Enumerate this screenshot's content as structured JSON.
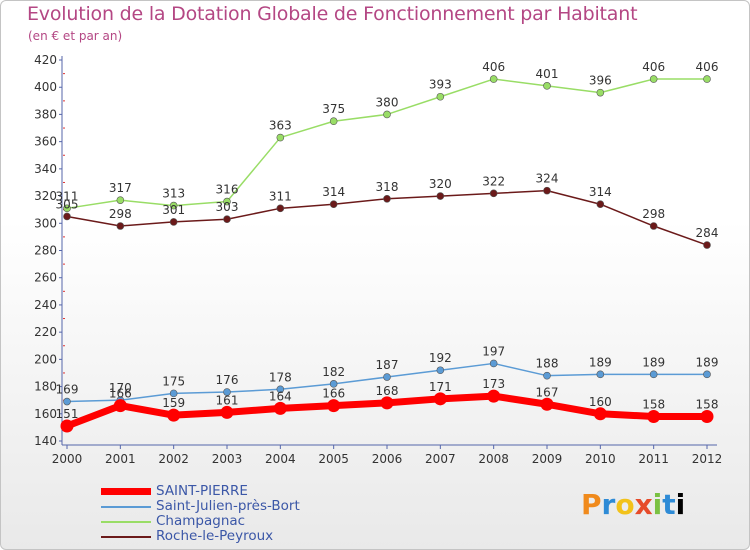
{
  "header": {
    "title": "Evolution de la Dotation Globale de Fonctionnement par Habitant",
    "subtitle": "(en € et par an)"
  },
  "logo_text": "Proxiti",
  "chart_data": {
    "type": "line",
    "x": [
      "2000",
      "2001",
      "2002",
      "2003",
      "2004",
      "2005",
      "2006",
      "2007",
      "2008",
      "2009",
      "2010",
      "2011",
      "2012"
    ],
    "ylim": [
      140,
      420
    ],
    "yticks": [
      140,
      160,
      180,
      200,
      220,
      240,
      260,
      280,
      300,
      320,
      340,
      360,
      380,
      400,
      420
    ],
    "grid": false,
    "legend_position": "bottom-left",
    "series": [
      {
        "name": "SAINT-PIERRE",
        "color": "#ff0000",
        "values": [
          151,
          166,
          159,
          161,
          164,
          166,
          168,
          171,
          173,
          167,
          160,
          158,
          158
        ]
      },
      {
        "name": "Saint-Julien-près-Bort",
        "color": "#5b9bd5",
        "values": [
          169,
          170,
          175,
          176,
          178,
          182,
          187,
          192,
          197,
          188,
          189,
          189,
          189
        ]
      },
      {
        "name": "Champagnac",
        "color": "#99dd66",
        "values": [
          311,
          317,
          313,
          316,
          363,
          375,
          380,
          393,
          406,
          401,
          396,
          406,
          406
        ]
      },
      {
        "name": "Roche-le-Peyroux",
        "color": "#6b1a1a",
        "values": [
          305,
          298,
          301,
          303,
          311,
          314,
          318,
          320,
          322,
          324,
          314,
          298,
          284
        ]
      }
    ]
  }
}
